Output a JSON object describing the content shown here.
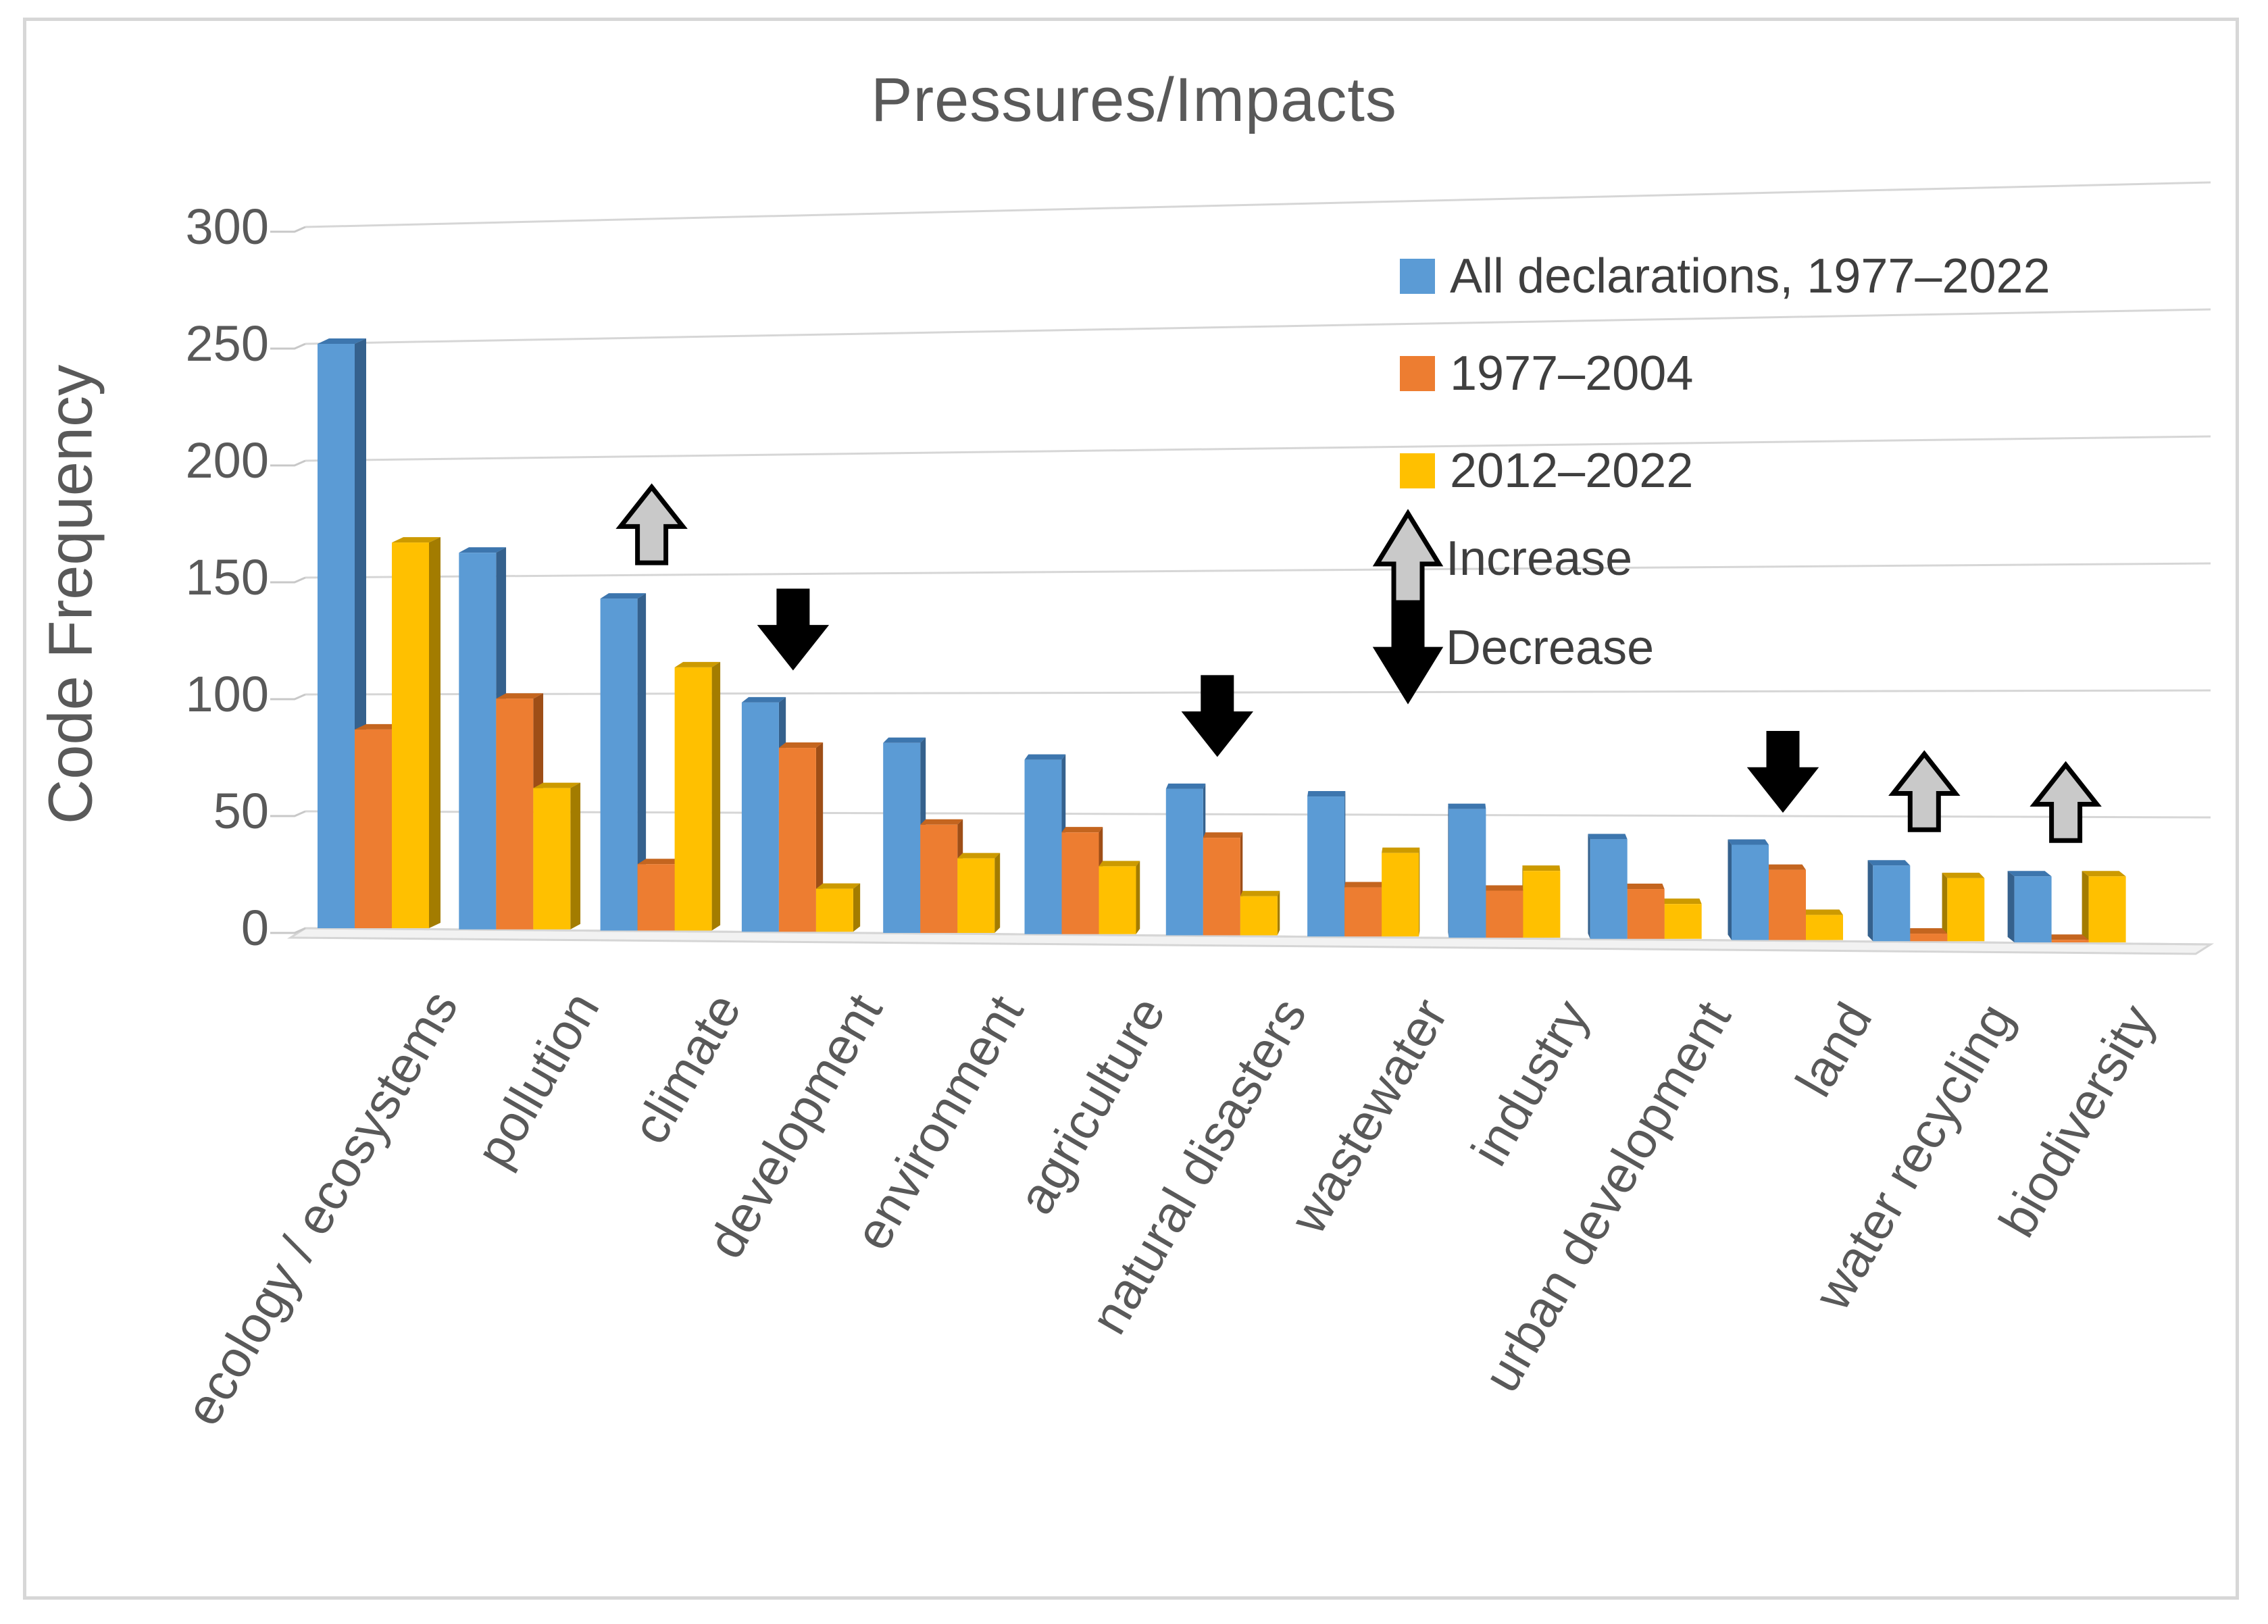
{
  "chart_data": {
    "type": "bar",
    "style": "3d-clustered-column",
    "title": "Pressures/Impacts",
    "xlabel": "",
    "ylabel": "Code Frequency",
    "ylim": [
      0,
      300
    ],
    "yticks": [
      300,
      250,
      200,
      150,
      100,
      50,
      0
    ],
    "grid": true,
    "legend_position": "top-right-inside",
    "categories": [
      "ecology / ecosystems",
      "pollution",
      "climate",
      "development",
      "environment",
      "agriculture",
      "natural disasters",
      "wastewater",
      "industry",
      "urban development",
      "land",
      "water recycling",
      "biodiversity"
    ],
    "series": [
      {
        "name": "All declarations, 1977–2022",
        "color": "#5B9BD5",
        "values": [
          250,
          160,
          140,
          96,
          79,
          72,
          60,
          57,
          52,
          40,
          38,
          30,
          26
        ]
      },
      {
        "name": "1977–2004",
        "color": "#ED7D31",
        "values": [
          85,
          98,
          28,
          77,
          45,
          42,
          40,
          20,
          19,
          20,
          28,
          3,
          1
        ]
      },
      {
        "name": "2012–2022",
        "color": "#FFC000",
        "values": [
          165,
          60,
          111,
          18,
          31,
          28,
          16,
          34,
          27,
          14,
          10,
          25,
          26
        ]
      }
    ],
    "annotations": [
      {
        "category": "climate",
        "type": "increase"
      },
      {
        "category": "development",
        "type": "decrease"
      },
      {
        "category": "natural disasters",
        "type": "decrease"
      },
      {
        "category": "land",
        "type": "decrease"
      },
      {
        "category": "water recycling",
        "type": "increase"
      },
      {
        "category": "biodiversity",
        "type": "increase"
      }
    ],
    "annotation_legend": {
      "increase_label": "Increase",
      "decrease_label": "Decrease",
      "increase_color": "#C9C9C9",
      "decrease_color": "#000000"
    }
  }
}
